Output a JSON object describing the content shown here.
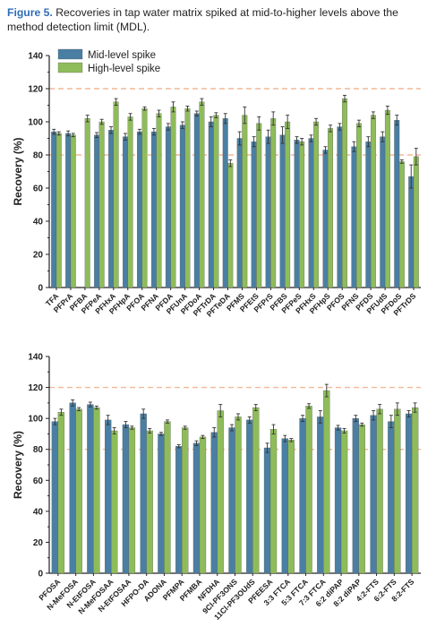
{
  "caption": {
    "figure_label": "Figure 5.",
    "text": "Recoveries in tap water matrix spiked at mid-to-higher levels above the method detection limit (MDL)."
  },
  "colors": {
    "mid": "#4a7fa3",
    "high": "#8fbc5a",
    "refline": "#f3b995"
  },
  "chart_data": [
    {
      "type": "bar",
      "ylabel": "Recovery (%)",
      "ylim": [
        0,
        140
      ],
      "yticks": [
        0,
        20,
        40,
        60,
        80,
        100,
        120,
        140
      ],
      "reference_lines": [
        80,
        120
      ],
      "legend": {
        "placement": "top-left",
        "entries": [
          "Mid-level spike",
          "High-level spike"
        ]
      },
      "categories": [
        "TFA",
        "PFPrA",
        "PFBA",
        "PFPeA",
        "PFHxA",
        "PFHpA",
        "PFOA",
        "PFNA",
        "PFDA",
        "PFUnA",
        "PFDoA",
        "PFTrDA",
        "PFTeDA",
        "PFMS",
        "PFEtS",
        "PFPrS",
        "PFBS",
        "PFPeS",
        "PFHxS",
        "PFHpS",
        "PFOS",
        "PFNS",
        "PFDS",
        "PFUdS",
        "PFDoS",
        "PFTrDS"
      ],
      "series": [
        {
          "name": "Mid-level spike",
          "values": [
            94,
            93,
            null,
            92,
            95,
            91,
            94,
            94,
            97,
            98,
            105,
            100,
            102,
            90,
            88,
            91,
            92,
            89,
            90,
            83,
            97,
            85,
            88,
            91,
            101,
            67
          ],
          "errors": [
            1.5,
            1.5,
            null,
            1.5,
            2,
            2,
            1.5,
            2,
            2,
            2,
            1.5,
            3,
            3,
            4,
            3,
            4,
            5,
            2,
            2,
            2,
            2,
            3,
            3,
            3,
            3,
            7
          ]
        },
        {
          "name": "High-level spike",
          "values": [
            93,
            92,
            102,
            100,
            112,
            103,
            108,
            105,
            109,
            108,
            112,
            104,
            75,
            104,
            99,
            102,
            100,
            88,
            100,
            96,
            114,
            99,
            104,
            107,
            76,
            79
          ],
          "errors": [
            1,
            1,
            2,
            1.5,
            2,
            2,
            1,
            2,
            3,
            1.5,
            2,
            1.5,
            2,
            5,
            4,
            4,
            4,
            2,
            2,
            2,
            2,
            2,
            2,
            2.5,
            1,
            5
          ]
        }
      ]
    },
    {
      "type": "bar",
      "ylabel": "Recovery (%)",
      "ylim": [
        0,
        140
      ],
      "yticks": [
        0,
        20,
        40,
        60,
        80,
        100,
        120,
        140
      ],
      "reference_lines": [
        80,
        120
      ],
      "categories": [
        "PFOSA",
        "N-MeFOSA",
        "N-EtFOSA",
        "N-MeFOSAA",
        "N-EtFOSAA",
        "HFPO-DA",
        "ADONA",
        "PFMPA",
        "PFMBA",
        "NFDHA",
        "9Cl-PF3ONS",
        "11Cl-PF3OUdS",
        "PFEESA",
        "3:3 FTCA",
        "5:3 FTCA",
        "7:3 FTCA",
        "6:2 diPAP",
        "8:2 diPAP",
        "4:2-FTS",
        "6:2-FTS",
        "8:2-FTS"
      ],
      "series": [
        {
          "name": "Mid-level spike",
          "values": [
            98,
            110,
            109,
            99,
            96,
            103,
            90,
            82,
            84,
            91,
            94,
            99,
            81,
            87,
            100,
            101,
            94,
            100,
            102,
            98,
            103
          ],
          "errors": [
            2,
            2,
            1.5,
            3,
            2,
            3,
            1,
            1,
            1.5,
            3,
            2,
            2,
            3,
            2,
            2,
            4,
            1.5,
            2,
            3,
            4,
            2
          ]
        },
        {
          "name": "High-level spike",
          "values": [
            104,
            106,
            107,
            92,
            94,
            92,
            98,
            94,
            88,
            105,
            101,
            107,
            93,
            86,
            108,
            118,
            92,
            96,
            106,
            106,
            107
          ],
          "errors": [
            2,
            1,
            1,
            2,
            1,
            1.5,
            1,
            1,
            1,
            4,
            2,
            2,
            3,
            1,
            1.5,
            4,
            1.5,
            1,
            3,
            4,
            3
          ]
        }
      ]
    }
  ]
}
